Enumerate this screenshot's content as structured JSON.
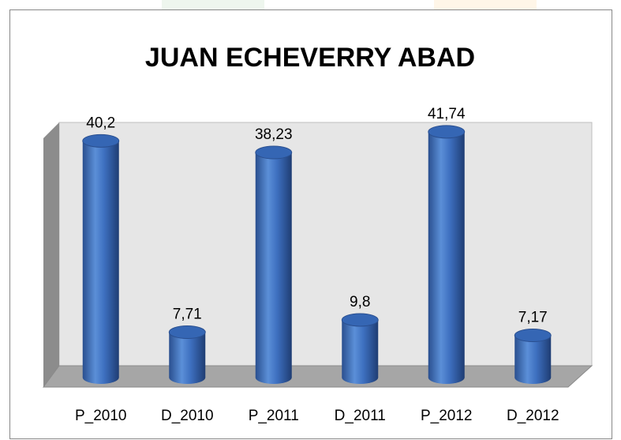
{
  "chart_data": {
    "type": "bar",
    "title": "JUAN ECHEVERRY ABAD",
    "categories": [
      "P_2010",
      "D_2010",
      "P_2011",
      "D_2011",
      "P_2012",
      "D_2012"
    ],
    "values": [
      40.2,
      7.71,
      38.23,
      9.8,
      41.74,
      7.17
    ],
    "value_labels": [
      "40,2",
      "7,71",
      "38,23",
      "9,8",
      "41,74",
      "7,17"
    ],
    "color": "#3d6fbf",
    "ylim": [
      0,
      44
    ]
  }
}
